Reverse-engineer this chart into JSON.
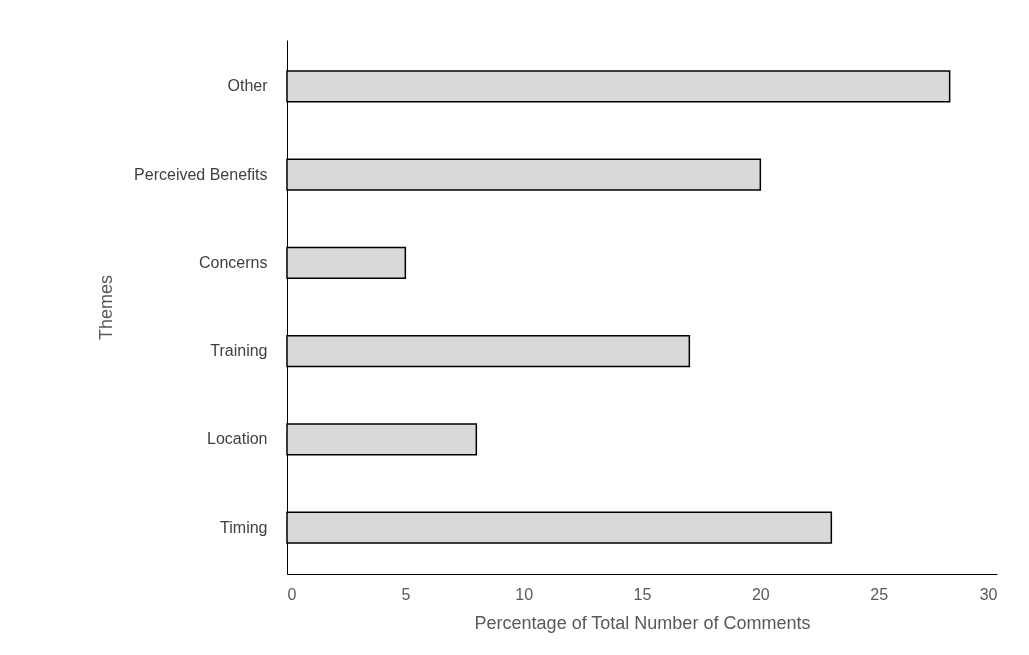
{
  "chart_data": {
    "type": "bar",
    "orientation": "horizontal",
    "xlabel": "Percentage of Total Number of Comments",
    "ylabel": "Themes",
    "categories": [
      "Other",
      "Perceived Benefits",
      "Concerns",
      "Training",
      "Location",
      "Timing"
    ],
    "series": [
      {
        "color": "#d9d9d9",
        "values": [
          28,
          20,
          5,
          17,
          8,
          23
        ]
      }
    ],
    "xlim": [
      0,
      30
    ],
    "xticks": [
      0,
      5,
      10,
      15,
      20,
      25,
      30
    ],
    "grid": false
  }
}
